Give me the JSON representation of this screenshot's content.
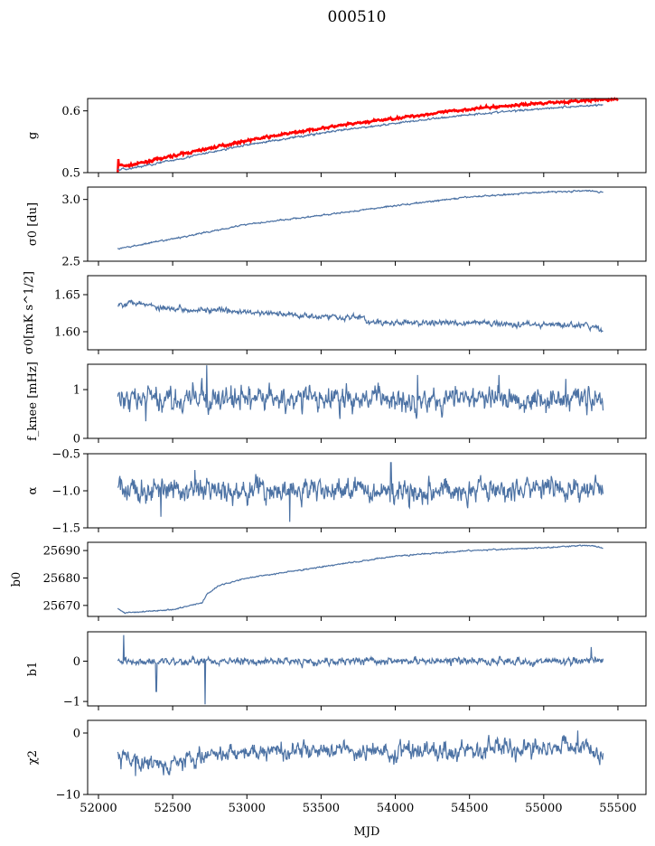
{
  "chart_data": {
    "type": "line",
    "title": "000510",
    "xlabel": "MJD",
    "xlim": [
      51927,
      55689
    ],
    "xticks": [
      52000,
      52500,
      53000,
      53500,
      54000,
      54500,
      55000,
      55500
    ],
    "line_color": "#4c72a4",
    "reference_color": "#ff0000",
    "x_range": [
      52130,
      55400
    ],
    "panels": [
      {
        "ylabel": "g",
        "ylim": [
          0.5,
          0.62
        ],
        "yticks": [
          {
            "v": 0.5,
            "label": "0.5"
          },
          {
            "v": 0.6,
            "label": "0.6"
          }
        ],
        "trend": [
          [
            52130,
            0.505
          ],
          [
            52200,
            0.506
          ],
          [
            52500,
            0.52
          ],
          [
            53000,
            0.545
          ],
          [
            53500,
            0.564
          ],
          [
            54000,
            0.58
          ],
          [
            54500,
            0.594
          ],
          [
            55000,
            0.604
          ],
          [
            55400,
            0.61
          ]
        ],
        "noise": 0.001,
        "spikes": [],
        "reference": {
          "trend": [
            [
              52130,
              0.512
            ],
            [
              52200,
              0.511
            ],
            [
              52500,
              0.527
            ],
            [
              53000,
              0.552
            ],
            [
              53500,
              0.572
            ],
            [
              54000,
              0.588
            ],
            [
              54500,
              0.603
            ],
            [
              55000,
              0.613
            ],
            [
              55500,
              0.619
            ]
          ],
          "spikes": [
            [
              52130,
              0.49
            ],
            [
              52135,
              0.522
            ]
          ]
        }
      },
      {
        "ylabel": "σ0 [du]",
        "ylim": [
          2.5,
          3.1
        ],
        "yticks": [
          {
            "v": 2.5,
            "label": "2.5"
          },
          {
            "v": 3.0,
            "label": "3.0"
          }
        ],
        "trend": [
          [
            52130,
            2.6
          ],
          [
            52500,
            2.68
          ],
          [
            53000,
            2.8
          ],
          [
            53500,
            2.87
          ],
          [
            54000,
            2.95
          ],
          [
            54500,
            3.02
          ],
          [
            55000,
            3.06
          ],
          [
            55300,
            3.07
          ],
          [
            55400,
            3.06
          ]
        ],
        "noise": 0.004,
        "spikes": []
      },
      {
        "ylabel": "σ0[mK s^1/2]",
        "ylim": [
          1.5756,
          1.6756
        ],
        "yticks": [
          {
            "v": 1.6,
            "label": "1.60"
          },
          {
            "v": 1.65,
            "label": "1.65"
          }
        ],
        "trend": [
          [
            52130,
            1.636
          ],
          [
            52250,
            1.641
          ],
          [
            52400,
            1.633
          ],
          [
            53000,
            1.626
          ],
          [
            53500,
            1.621
          ],
          [
            53800,
            1.619
          ],
          [
            53810,
            1.612
          ],
          [
            54500,
            1.612
          ],
          [
            55300,
            1.608
          ],
          [
            55400,
            1.602
          ]
        ],
        "noise": 0.0025,
        "spikes": []
      },
      {
        "ylabel": "f_knee [mHz]",
        "ylim": [
          0,
          1.52
        ],
        "yticks": [
          {
            "v": 0,
            "label": "0"
          },
          {
            "v": 1,
            "label": "1"
          }
        ],
        "trend": [
          [
            52130,
            0.8
          ],
          [
            55400,
            0.82
          ]
        ],
        "noise": 0.16,
        "spikes": [
          [
            52730,
            1.5
          ],
          [
            54150,
            1.3
          ],
          [
            54700,
            1.3
          ],
          [
            55150,
            1.22
          ],
          [
            52320,
            0.35
          ]
        ]
      },
      {
        "ylabel": "α",
        "ylim": [
          -1.5,
          -0.5
        ],
        "yticks": [
          {
            "v": -1.5,
            "label": "−1.5"
          },
          {
            "v": -1.0,
            "label": "−1.0"
          },
          {
            "v": -0.5,
            "label": "−0.5"
          }
        ],
        "trend": [
          [
            52130,
            -1.0
          ],
          [
            55400,
            -0.98
          ]
        ],
        "noise": 0.1,
        "spikes": [
          [
            53970,
            -0.62
          ],
          [
            53290,
            -1.42
          ],
          [
            52420,
            -1.35
          ],
          [
            52650,
            -0.72
          ]
        ]
      },
      {
        "ylabel": "b0",
        "ylim": [
          25666,
          25693
        ],
        "yticks": [
          {
            "v": 25670,
            "label": "25670"
          },
          {
            "v": 25680,
            "label": "25680"
          },
          {
            "v": 25690,
            "label": "25690"
          }
        ],
        "trend": [
          [
            52130,
            25669
          ],
          [
            52180,
            25667.3
          ],
          [
            52500,
            25668.5
          ],
          [
            52700,
            25671
          ],
          [
            52730,
            25674
          ],
          [
            52800,
            25677
          ],
          [
            53000,
            25680
          ],
          [
            53500,
            25684
          ],
          [
            54000,
            25688
          ],
          [
            54500,
            25690
          ],
          [
            55000,
            25691
          ],
          [
            55300,
            25692
          ],
          [
            55400,
            25690.8
          ]
        ],
        "noise": 0.15,
        "spikes": []
      },
      {
        "ylabel": "b1",
        "ylim": [
          -1.11,
          0.73
        ],
        "yticks": [
          {
            "v": -1,
            "label": "−1"
          },
          {
            "v": 0,
            "label": "0"
          }
        ],
        "trend": [
          [
            52130,
            0.0
          ],
          [
            55400,
            0.0
          ]
        ],
        "noise": 0.06,
        "spikes": [
          [
            52170,
            0.65
          ],
          [
            52390,
            -0.75
          ],
          [
            52720,
            -1.07
          ],
          [
            55320,
            0.35
          ]
        ]
      },
      {
        "ylabel": "χ2",
        "ylim": [
          -10,
          2.06
        ],
        "yticks": [
          {
            "v": -10,
            "label": "−10"
          },
          {
            "v": 0,
            "label": "0"
          }
        ],
        "trend": [
          [
            52130,
            -4
          ],
          [
            52400,
            -5
          ],
          [
            53000,
            -3
          ],
          [
            54000,
            -3
          ],
          [
            55300,
            -2
          ],
          [
            55400,
            -4
          ]
        ],
        "noise": 0.9,
        "spikes": [
          [
            52250,
            -7
          ],
          [
            55230,
            0.4
          ]
        ]
      }
    ]
  }
}
